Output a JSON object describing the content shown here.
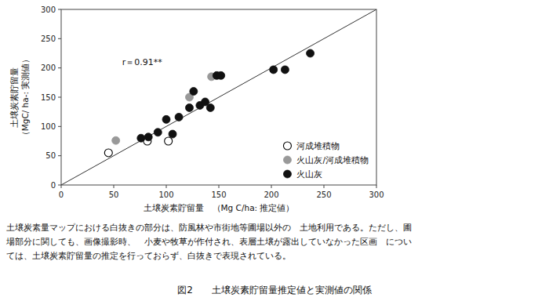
{
  "chart_data": {
    "type": "scatter",
    "title": "図2　　土壌炭素貯留量推定値と実測値の関係",
    "xlabel": "土壌炭素貯留量　（Mg C/ha: 推定値）",
    "ylabel": "土壌炭素貯留量\n（MgC/ ha-: 実測値）",
    "xlim": [
      0,
      300
    ],
    "ylim": [
      0,
      300
    ],
    "xticks": [
      0,
      50,
      100,
      150,
      200,
      250,
      300
    ],
    "yticks": [
      0,
      50,
      100,
      150,
      200,
      250,
      300
    ],
    "grid": false,
    "legend": "lower right",
    "annotations": [
      {
        "text": "r＝0.91**",
        "x": 58,
        "y": 210
      }
    ],
    "caption": [
      "土壌炭素量マップにおける白抜きの部分は、防風林や市街地等圃場以外の　土地利用である。ただし、圃",
      "場部分に関しても、画像撮影時、　小麦や牧草が作付され、表層土壌が露出していなかった区画　につい",
      "ては、土壌炭素貯留量の推定を行っておらず、白抜きで表現されている。"
    ],
    "series": [
      {
        "type": "line",
        "color": "#333333",
        "line_style": "solid",
        "x": [
          0,
          300
        ],
        "values": [
          0,
          300
        ]
      },
      {
        "name": "河成堆積物",
        "type": "scatter",
        "marker": "open-circle",
        "color": "black",
        "x": [
          45,
          82,
          102
        ],
        "values": [
          55,
          75,
          75
        ]
      },
      {
        "name": "火山灰/河成堆積物",
        "type": "scatter",
        "marker": "circle",
        "color": "#999999",
        "x": [
          52,
          122,
          143
        ],
        "values": [
          76,
          150,
          185
        ]
      },
      {
        "name": "火山灰",
        "type": "scatter",
        "marker": "circle",
        "color": "#111111",
        "x": [
          76,
          83,
          92,
          100,
          106,
          112,
          122,
          126,
          132,
          137,
          142,
          148,
          152,
          202,
          213,
          237
        ],
        "values": [
          80,
          82,
          90,
          112,
          87,
          116,
          132,
          160,
          136,
          142,
          132,
          187,
          187,
          197,
          197,
          225
        ]
      }
    ]
  }
}
